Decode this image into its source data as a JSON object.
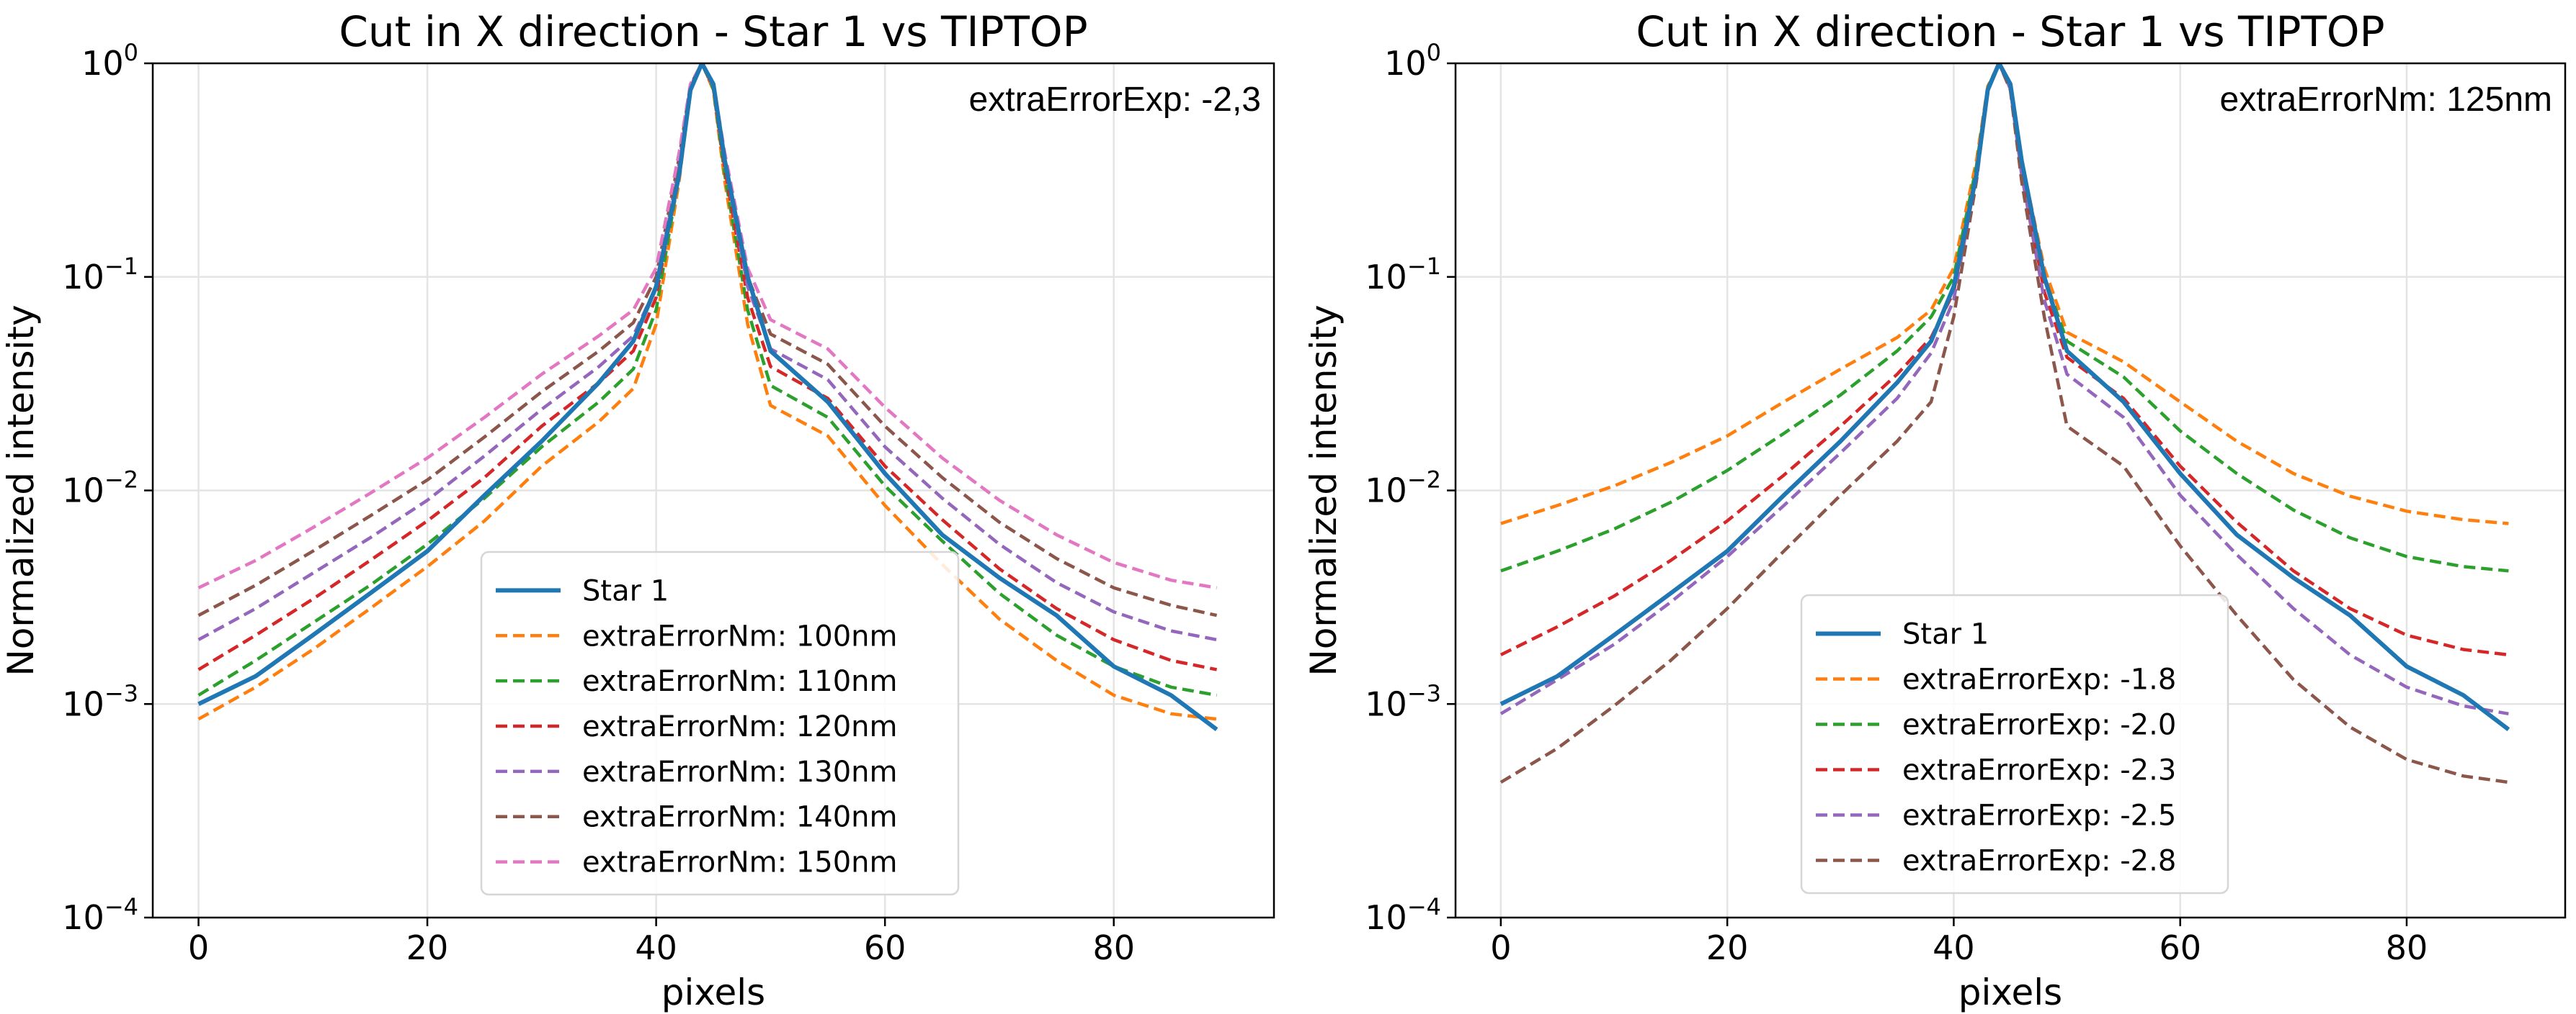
{
  "chart_data": [
    {
      "type": "line",
      "title": "Cut in X direction - Star 1 vs TIPTOP",
      "xlabel": "pixels",
      "ylabel": "Normalized intensity",
      "yscale": "log",
      "xlim": [
        -4,
        94
      ],
      "ylim": [
        0.0001,
        1
      ],
      "xticks": [
        0,
        20,
        40,
        60,
        80
      ],
      "yticks": [
        {
          "base": "10",
          "exp": "0"
        },
        {
          "base": "10",
          "exp": "−1"
        },
        {
          "base": "10",
          "exp": "−2"
        },
        {
          "base": "10",
          "exp": "−3"
        },
        {
          "base": "10",
          "exp": "−4"
        }
      ],
      "ytick_values": [
        1,
        0.1,
        0.01,
        0.001,
        0.0001
      ],
      "grid": true,
      "annotation": "extraErrorExp: -2,3",
      "legend_position": "lower-center",
      "x": [
        0,
        5,
        10,
        15,
        20,
        25,
        30,
        35,
        38,
        40,
        42,
        43,
        44,
        45,
        46,
        48,
        50,
        55,
        60,
        65,
        70,
        75,
        80,
        85,
        89
      ],
      "series": [
        {
          "name": "Star 1",
          "style": "solid",
          "color": "#1f77b4",
          "values": [
            0.001,
            0.00135,
            0.0021,
            0.0033,
            0.0052,
            0.0095,
            0.017,
            0.032,
            0.05,
            0.09,
            0.3,
            0.75,
            1.0,
            0.8,
            0.35,
            0.1,
            0.045,
            0.026,
            0.012,
            0.0062,
            0.0039,
            0.0026,
            0.0015,
            0.0011,
            0.00076
          ]
        },
        {
          "name": "extraErrorNm: 100nm",
          "style": "dashed",
          "color": "#ff7f0e",
          "values": [
            0.00085,
            0.0012,
            0.0018,
            0.0028,
            0.0044,
            0.0072,
            0.013,
            0.021,
            0.03,
            0.06,
            0.28,
            0.75,
            1.0,
            0.75,
            0.28,
            0.06,
            0.025,
            0.018,
            0.0085,
            0.0045,
            0.0025,
            0.0016,
            0.0011,
            0.0009,
            0.00085
          ]
        },
        {
          "name": "extraErrorNm: 110nm",
          "style": "dashed",
          "color": "#2ca02c",
          "values": [
            0.0011,
            0.0016,
            0.0024,
            0.0036,
            0.0056,
            0.0092,
            0.016,
            0.026,
            0.037,
            0.07,
            0.3,
            0.76,
            1.0,
            0.76,
            0.3,
            0.07,
            0.031,
            0.022,
            0.0105,
            0.0058,
            0.0033,
            0.0021,
            0.0015,
            0.0012,
            0.0011
          ]
        },
        {
          "name": "extraErrorNm: 120nm",
          "style": "dashed",
          "color": "#d62728",
          "values": [
            0.00145,
            0.0021,
            0.0031,
            0.0047,
            0.0072,
            0.0115,
            0.02,
            0.032,
            0.045,
            0.08,
            0.32,
            0.77,
            1.0,
            0.77,
            0.32,
            0.08,
            0.038,
            0.027,
            0.013,
            0.0073,
            0.0043,
            0.0028,
            0.002,
            0.0016,
            0.00145
          ]
        },
        {
          "name": "extraErrorNm: 130nm",
          "style": "dashed",
          "color": "#9467bd",
          "values": [
            0.002,
            0.0028,
            0.0041,
            0.006,
            0.009,
            0.0145,
            0.024,
            0.038,
            0.053,
            0.09,
            0.34,
            0.78,
            1.0,
            0.78,
            0.34,
            0.09,
            0.046,
            0.033,
            0.016,
            0.0092,
            0.0056,
            0.0037,
            0.0027,
            0.0022,
            0.002
          ]
        },
        {
          "name": "extraErrorNm: 140nm",
          "style": "dashed",
          "color": "#8c564b",
          "values": [
            0.0026,
            0.0036,
            0.0052,
            0.0076,
            0.0112,
            0.0178,
            0.029,
            0.045,
            0.061,
            0.1,
            0.36,
            0.79,
            1.0,
            0.79,
            0.36,
            0.1,
            0.054,
            0.039,
            0.02,
            0.0115,
            0.0071,
            0.0048,
            0.0035,
            0.0029,
            0.0026
          ]
        },
        {
          "name": "extraErrorNm: 150nm",
          "style": "dashed",
          "color": "#e377c2",
          "values": [
            0.0035,
            0.0047,
            0.0067,
            0.0097,
            0.0142,
            0.022,
            0.035,
            0.053,
            0.07,
            0.11,
            0.38,
            0.8,
            1.0,
            0.8,
            0.38,
            0.11,
            0.063,
            0.046,
            0.0245,
            0.0142,
            0.009,
            0.0062,
            0.0046,
            0.0038,
            0.0035
          ]
        }
      ]
    },
    {
      "type": "line",
      "title": "Cut in X direction - Star 1 vs TIPTOP",
      "xlabel": "pixels",
      "ylabel": "Normalized intensity",
      "yscale": "log",
      "xlim": [
        -4,
        94
      ],
      "ylim": [
        0.0001,
        1
      ],
      "xticks": [
        0,
        20,
        40,
        60,
        80
      ],
      "yticks": [
        {
          "base": "10",
          "exp": "0"
        },
        {
          "base": "10",
          "exp": "−1"
        },
        {
          "base": "10",
          "exp": "−2"
        },
        {
          "base": "10",
          "exp": "−3"
        },
        {
          "base": "10",
          "exp": "−4"
        }
      ],
      "ytick_values": [
        1,
        0.1,
        0.01,
        0.001,
        0.0001
      ],
      "grid": true,
      "annotation": "extraErrorNm: 125nm",
      "legend_position": "lower-center",
      "x": [
        0,
        5,
        10,
        15,
        20,
        25,
        30,
        35,
        38,
        40,
        42,
        43,
        44,
        45,
        46,
        48,
        50,
        55,
        60,
        65,
        70,
        75,
        80,
        85,
        89
      ],
      "series": [
        {
          "name": "Star 1",
          "style": "solid",
          "color": "#1f77b4",
          "values": [
            0.001,
            0.00135,
            0.0021,
            0.0033,
            0.0052,
            0.0095,
            0.017,
            0.032,
            0.05,
            0.09,
            0.3,
            0.75,
            1.0,
            0.8,
            0.35,
            0.1,
            0.045,
            0.026,
            0.012,
            0.0062,
            0.0039,
            0.0026,
            0.0015,
            0.0011,
            0.00076
          ]
        },
        {
          "name": "extraErrorExp: -1.8",
          "style": "dashed",
          "color": "#ff7f0e",
          "values": [
            0.007,
            0.0085,
            0.0105,
            0.0135,
            0.018,
            0.026,
            0.037,
            0.052,
            0.07,
            0.11,
            0.35,
            0.78,
            1.0,
            0.78,
            0.35,
            0.11,
            0.055,
            0.04,
            0.026,
            0.017,
            0.012,
            0.0094,
            0.008,
            0.0073,
            0.007
          ]
        },
        {
          "name": "extraErrorExp: -2.0",
          "style": "dashed",
          "color": "#2ca02c",
          "values": [
            0.0042,
            0.0052,
            0.0066,
            0.0088,
            0.0124,
            0.0185,
            0.028,
            0.045,
            0.065,
            0.1,
            0.33,
            0.77,
            1.0,
            0.77,
            0.33,
            0.1,
            0.05,
            0.034,
            0.019,
            0.012,
            0.0081,
            0.006,
            0.0049,
            0.0044,
            0.0042
          ]
        },
        {
          "name": "extraErrorExp: -2.3",
          "style": "dashed",
          "color": "#d62728",
          "values": [
            0.0017,
            0.0023,
            0.0032,
            0.0047,
            0.0072,
            0.0118,
            0.02,
            0.035,
            0.052,
            0.085,
            0.31,
            0.76,
            1.0,
            0.76,
            0.31,
            0.085,
            0.042,
            0.027,
            0.013,
            0.0071,
            0.0042,
            0.0028,
            0.0021,
            0.0018,
            0.0017
          ]
        },
        {
          "name": "extraErrorExp: -2.5",
          "style": "dashed",
          "color": "#9467bd",
          "values": [
            0.0009,
            0.0013,
            0.0019,
            0.003,
            0.0049,
            0.0085,
            0.015,
            0.027,
            0.044,
            0.078,
            0.3,
            0.76,
            1.0,
            0.76,
            0.3,
            0.078,
            0.035,
            0.022,
            0.0095,
            0.005,
            0.0028,
            0.0017,
            0.0012,
            0.00098,
            0.0009
          ]
        },
        {
          "name": "extraErrorExp: -2.8",
          "style": "dashed",
          "color": "#8c564b",
          "values": [
            0.00043,
            0.00062,
            0.00098,
            0.0016,
            0.0028,
            0.0052,
            0.0095,
            0.017,
            0.026,
            0.065,
            0.28,
            0.75,
            1.0,
            0.75,
            0.28,
            0.065,
            0.02,
            0.013,
            0.0055,
            0.0026,
            0.0013,
            0.00078,
            0.00055,
            0.00046,
            0.00043
          ]
        }
      ]
    }
  ]
}
